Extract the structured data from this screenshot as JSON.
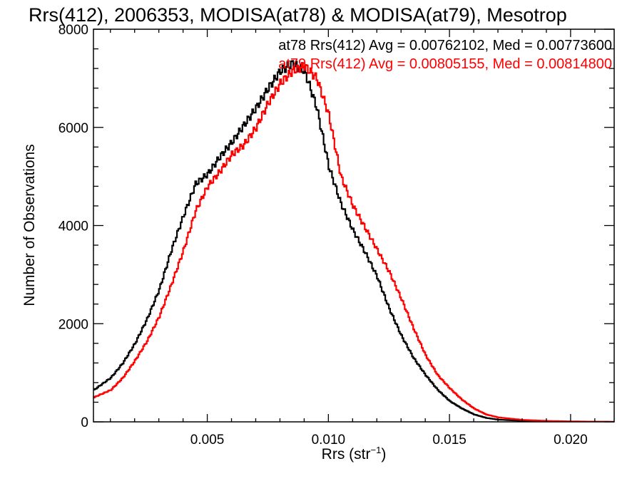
{
  "chart_data": {
    "type": "line",
    "title": "Rrs(412), 2006353, MODISA(at78) & MODISA(at79), Mesotrop",
    "xlabel_main": "Rrs (str",
    "xlabel_sup": "−1",
    "xlabel_close": ")",
    "ylabel": "Number of Observations",
    "xlim": [
      0.0003,
      0.0218
    ],
    "ylim": [
      0,
      8000
    ],
    "xticks": [
      0.005,
      0.01,
      0.015,
      0.02
    ],
    "xtick_labels": [
      "0.005",
      "0.010",
      "0.015",
      "0.020"
    ],
    "yticks": [
      0,
      2000,
      4000,
      6000,
      8000
    ],
    "ytick_labels": [
      "0",
      "2000",
      "4000",
      "6000",
      "8000"
    ],
    "grid": false,
    "legend_position": "top-right",
    "series": [
      {
        "name": "at78",
        "color": "#000000",
        "annotation": "at78 Rrs(412) Avg = 0.00762102, Med = 0.00773600",
        "x": [
          0.0003,
          0.001,
          0.0015,
          0.002,
          0.0025,
          0.003,
          0.0035,
          0.004,
          0.0045,
          0.005,
          0.0055,
          0.006,
          0.0065,
          0.007,
          0.0075,
          0.008,
          0.0085,
          0.009,
          0.0095,
          0.01,
          0.0105,
          0.011,
          0.0115,
          0.012,
          0.0125,
          0.013,
          0.0135,
          0.014,
          0.0145,
          0.015,
          0.0155,
          0.016,
          0.0165,
          0.017,
          0.018,
          0.019,
          0.02,
          0.021,
          0.0218
        ],
        "y": [
          650,
          900,
          1200,
          1600,
          2100,
          2700,
          3500,
          4200,
          4850,
          5050,
          5400,
          5700,
          6050,
          6400,
          6800,
          7150,
          7300,
          7150,
          6400,
          5200,
          4450,
          3900,
          3450,
          2950,
          2300,
          1750,
          1300,
          950,
          650,
          420,
          270,
          150,
          80,
          45,
          20,
          10,
          5,
          2,
          0
        ]
      },
      {
        "name": "at79",
        "color": "#ff0000",
        "annotation": "at79 Rrs(412) Avg = 0.00805155, Med = 0.00814800",
        "x": [
          0.0003,
          0.001,
          0.0015,
          0.002,
          0.0025,
          0.003,
          0.0035,
          0.004,
          0.0045,
          0.005,
          0.0055,
          0.006,
          0.0065,
          0.007,
          0.0075,
          0.008,
          0.0085,
          0.009,
          0.0095,
          0.01,
          0.0105,
          0.011,
          0.0115,
          0.012,
          0.0125,
          0.013,
          0.0135,
          0.014,
          0.0145,
          0.015,
          0.0155,
          0.016,
          0.0165,
          0.017,
          0.018,
          0.019,
          0.02,
          0.021,
          0.0218
        ],
        "y": [
          500,
          650,
          900,
          1250,
          1650,
          2150,
          2800,
          3500,
          4300,
          4800,
          5100,
          5450,
          5650,
          6000,
          6500,
          6900,
          7150,
          7250,
          7000,
          6250,
          5000,
          4400,
          3950,
          3500,
          3050,
          2500,
          1900,
          1350,
          950,
          680,
          450,
          270,
          150,
          90,
          40,
          20,
          10,
          4,
          0
        ]
      }
    ]
  }
}
